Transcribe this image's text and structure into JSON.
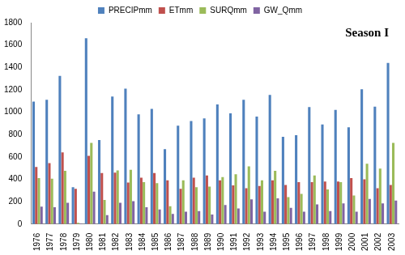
{
  "chart_data": {
    "type": "bar",
    "title": "Season I",
    "categories": [
      "1976",
      "1977",
      "1978",
      "1979",
      "1980",
      "1981",
      "1982",
      "1983",
      "1984",
      "1985",
      "1986",
      "1987",
      "1988",
      "1989",
      "1990",
      "1991",
      "1992",
      "1993",
      "1994",
      "1995",
      "1996",
      "1997",
      "1998",
      "1999",
      "2000",
      "2001",
      "2002",
      "2003"
    ],
    "series": [
      {
        "name": "PRECIPmm",
        "color": "#4f81bd",
        "values": [
          1095,
          1110,
          1325,
          330,
          1660,
          750,
          1140,
          1210,
          980,
          1030,
          670,
          880,
          920,
          945,
          1070,
          990,
          1110,
          960,
          1155,
          780,
          795,
          1045,
          890,
          1020,
          865,
          1205,
          1050,
          1440
        ]
      },
      {
        "name": "ETmm",
        "color": "#c0504d",
        "values": [
          510,
          545,
          640,
          315,
          610,
          455,
          460,
          370,
          415,
          455,
          390,
          315,
          415,
          435,
          390,
          345,
          320,
          340,
          390,
          350,
          375,
          375,
          380,
          380,
          410,
          400,
          320,
          350
        ]
      },
      {
        "name": "SURQmm",
        "color": "#9bbb59",
        "values": [
          410,
          405,
          475,
          10,
          725,
          215,
          480,
          485,
          375,
          365,
          160,
          390,
          330,
          335,
          420,
          445,
          515,
          390,
          475,
          240,
          270,
          435,
          310,
          375,
          255,
          540,
          495,
          725
        ]
      },
      {
        "name": "GW_Qmm",
        "color": "#8064a2",
        "values": [
          155,
          150,
          190,
          5,
          290,
          80,
          190,
          205,
          150,
          130,
          90,
          110,
          115,
          85,
          170,
          140,
          220,
          110,
          230,
          145,
          110,
          175,
          115,
          185,
          110,
          225,
          185,
          210
        ]
      }
    ],
    "ylim": [
      0,
      1800
    ],
    "yticks": [
      0,
      200,
      400,
      600,
      800,
      1000,
      1200,
      1400,
      1600,
      1800
    ],
    "grid": false,
    "legend": "top"
  }
}
